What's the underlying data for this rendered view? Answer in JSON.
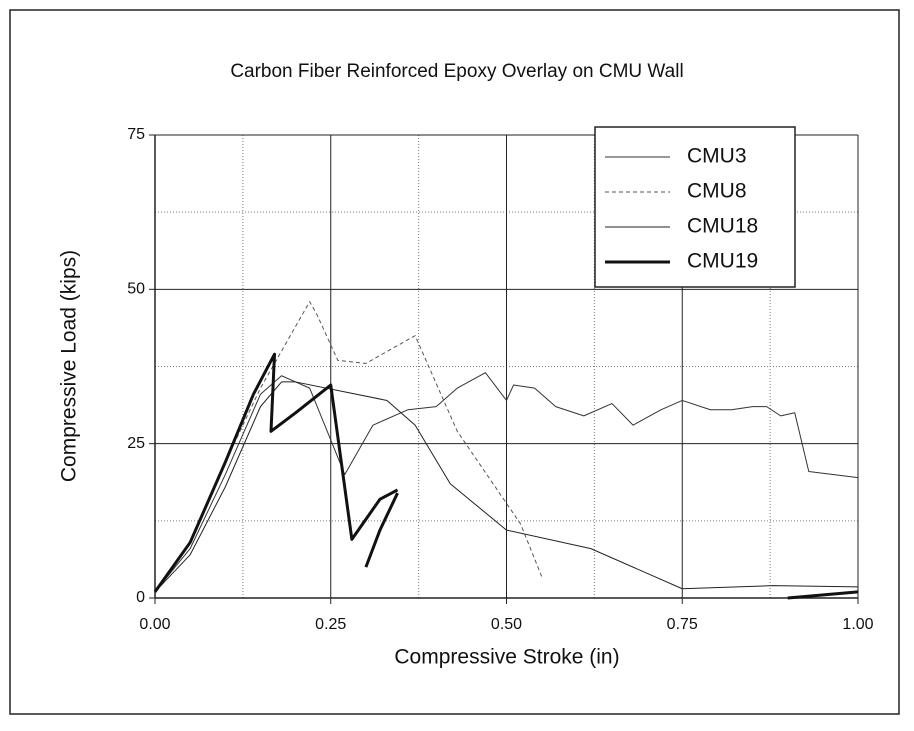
{
  "chart_data": {
    "type": "line",
    "title": "Carbon Fiber Reinforced Epoxy Overlay on CMU Wall",
    "x_label": "Compressive Stroke (in)",
    "y_label": "Compressive Load (kips)",
    "xlim": [
      0,
      1
    ],
    "ylim": [
      0,
      75
    ],
    "xticks": [
      {
        "value": 0,
        "label": "0.00"
      },
      {
        "value": 0.25,
        "label": "0.25"
      },
      {
        "value": 0.5,
        "label": "0.50"
      },
      {
        "value": 0.75,
        "label": "0.75"
      },
      {
        "value": 1,
        "label": "1.00"
      }
    ],
    "yticks": [
      0,
      25,
      50,
      75
    ],
    "minor_xticks": [
      0.125,
      0.375,
      0.625,
      0.875
    ],
    "minor_yticks": [
      12.5,
      37.5,
      62.5
    ],
    "grid": true,
    "legend": "top-right",
    "series": [
      {
        "name": "CMU3",
        "color": "#333333",
        "dash": "none",
        "line_width": 1,
        "x": [
          0,
          0.05,
          0.1,
          0.15,
          0.18,
          0.22,
          0.27,
          0.31,
          0.36,
          0.4,
          0.43,
          0.47,
          0.5,
          0.51,
          0.54,
          0.57,
          0.61,
          0.65,
          0.68,
          0.72,
          0.75,
          0.79,
          0.82,
          0.85,
          0.87,
          0.89,
          0.91,
          0.93,
          1.0
        ],
        "values": [
          1,
          8,
          20,
          33,
          36,
          34,
          20,
          28,
          30.5,
          31,
          34,
          36.5,
          32,
          34.5,
          34,
          31,
          29.5,
          31.5,
          28,
          30.5,
          32,
          30.5,
          30.5,
          31,
          31,
          29.5,
          30,
          20.5,
          19.5
        ]
      },
      {
        "name": "CMU8",
        "color": "#555555",
        "dash": "4,3",
        "line_width": 1,
        "x": [
          0,
          0.05,
          0.1,
          0.15,
          0.2,
          0.22,
          0.23,
          0.26,
          0.3,
          0.37,
          0.43,
          0.52,
          0.55
        ],
        "values": [
          1,
          9,
          22,
          34,
          44,
          48,
          46,
          38.5,
          38,
          42.5,
          27,
          12,
          3.5
        ]
      },
      {
        "name": "CMU18",
        "color": "#222222",
        "dash": "none",
        "line_width": 1,
        "x": [
          0,
          0.05,
          0.1,
          0.15,
          0.18,
          0.2,
          0.33,
          0.37,
          0.42,
          0.5,
          0.62,
          0.75,
          0.88,
          1.0
        ],
        "values": [
          1,
          7,
          18,
          31,
          35,
          35,
          32,
          28,
          18.5,
          11,
          8,
          1.5,
          2,
          1.8
        ]
      },
      {
        "name": "CMU19",
        "color": "#111111",
        "dash": "none",
        "line_width": 3,
        "x": [
          0,
          0.05,
          0.1,
          0.14,
          0.17,
          0.165,
          0.2,
          0.25,
          0.28,
          0.32,
          0.345,
          0.35,
          0.3,
          0.32,
          0.345,
          0.35,
          0.9,
          1.0
        ],
        "values": [
          1,
          9,
          22,
          33,
          39.5,
          27,
          30,
          34.5,
          9.5,
          16,
          17.5,
          null,
          5,
          11,
          17,
          null,
          0,
          1
        ]
      }
    ]
  }
}
